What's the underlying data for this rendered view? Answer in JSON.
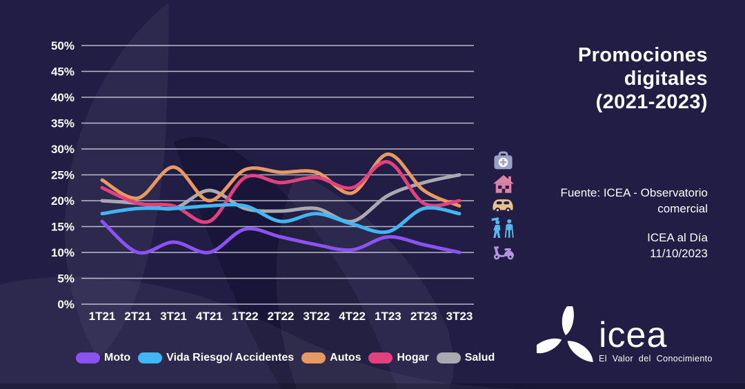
{
  "page": {
    "background": "#211d45"
  },
  "title": {
    "lines": [
      "Promociones",
      "digitales",
      "(2021-2023)"
    ]
  },
  "source": {
    "line1": "Fuente: ICEA  - Observatorio",
    "line2": "comercial"
  },
  "publication": {
    "line1": "ICEA al Día",
    "line2": "11/10/2023"
  },
  "logo": {
    "wordmark": "icea",
    "tagline": "El Valor del Conocimiento"
  },
  "icons_column": [
    {
      "name": "medkit-icon",
      "series": "Salud",
      "color": "#9ba0c6"
    },
    {
      "name": "house-icon",
      "series": "Hogar",
      "color": "#dc82a6"
    },
    {
      "name": "car-icon",
      "series": "Autos",
      "color": "#e5c191"
    },
    {
      "name": "people-icon",
      "series": "Vida Riesgo/ Accidentes",
      "color": "#57b9ee"
    },
    {
      "name": "scooter-icon",
      "series": "Moto",
      "color": "#b594de"
    }
  ],
  "chart_data": {
    "type": "line",
    "title": "Promociones digitales (2021-2023)",
    "categories": [
      "1T21",
      "2T21",
      "3T21",
      "4T21",
      "1T22",
      "2T22",
      "3T22",
      "4T22",
      "1T23",
      "2T23",
      "3T23"
    ],
    "series": [
      {
        "name": "Moto",
        "color": "#8a52f0",
        "values": [
          16,
          10,
          12,
          10,
          14.5,
          13,
          11.5,
          10.5,
          13,
          11.5,
          10
        ]
      },
      {
        "name": "Vida Riesgo/ Accidentes",
        "color": "#41b6f2",
        "values": [
          17.5,
          18.5,
          18.5,
          19,
          19,
          16,
          17.5,
          15.5,
          14,
          18.5,
          17.5
        ]
      },
      {
        "name": "Autos",
        "color": "#e69a62",
        "values": [
          24,
          20.5,
          26.5,
          20,
          26,
          25.5,
          25.5,
          21.5,
          29,
          22,
          19
        ]
      },
      {
        "name": "Hogar",
        "color": "#e2417e",
        "values": [
          22.5,
          19.5,
          19,
          16,
          24.5,
          23.5,
          24.5,
          22.5,
          27.5,
          19.5,
          20
        ]
      },
      {
        "name": "Salud",
        "color": "#a9a9b2",
        "values": [
          20,
          19.5,
          18.5,
          22,
          18.5,
          18,
          18.5,
          16,
          21,
          23.5,
          25
        ]
      }
    ],
    "y_ticks": [
      "0%",
      "5%",
      "10%",
      "15%",
      "20%",
      "25%",
      "30%",
      "35%",
      "40%",
      "45%",
      "50%"
    ],
    "ylim": [
      0,
      50
    ],
    "ytick_step": 5,
    "grid": true,
    "legend_position": "bottom",
    "xlabel": "",
    "ylabel": ""
  }
}
